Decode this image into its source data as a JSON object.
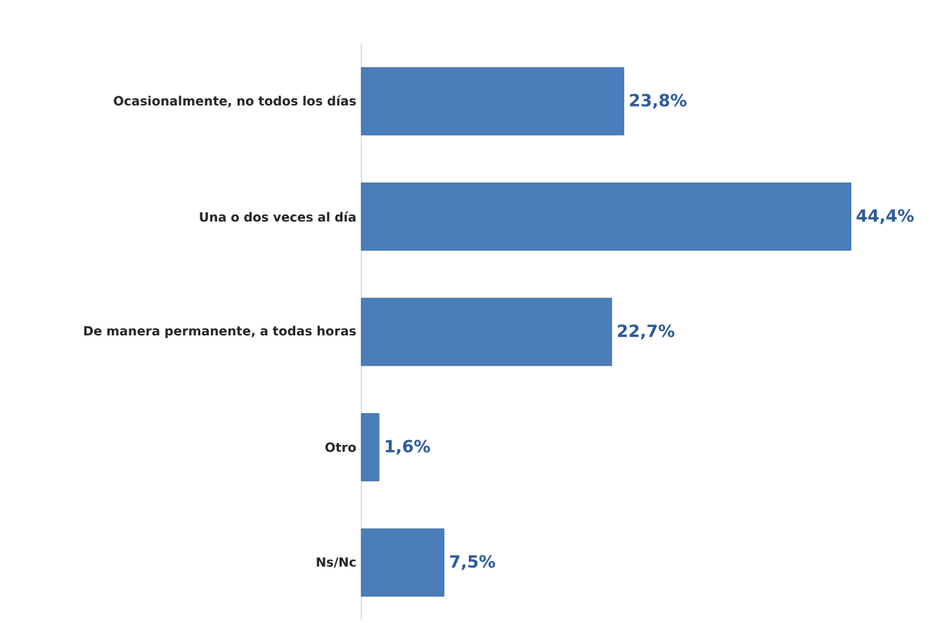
{
  "chart_data": {
    "type": "bar",
    "orientation": "horizontal",
    "categories": [
      "Ocasionalmente, no todos los días",
      "Una o dos veces al día",
      "De manera permanente, a todas horas",
      "Otro",
      "Ns/Nc"
    ],
    "values": [
      23.8,
      44.4,
      22.7,
      1.6,
      7.5
    ],
    "value_labels": [
      "23,8%",
      "44,4%",
      "22,7%",
      "1,6%",
      "7,5%"
    ],
    "color": "#4a7ebb"
  }
}
